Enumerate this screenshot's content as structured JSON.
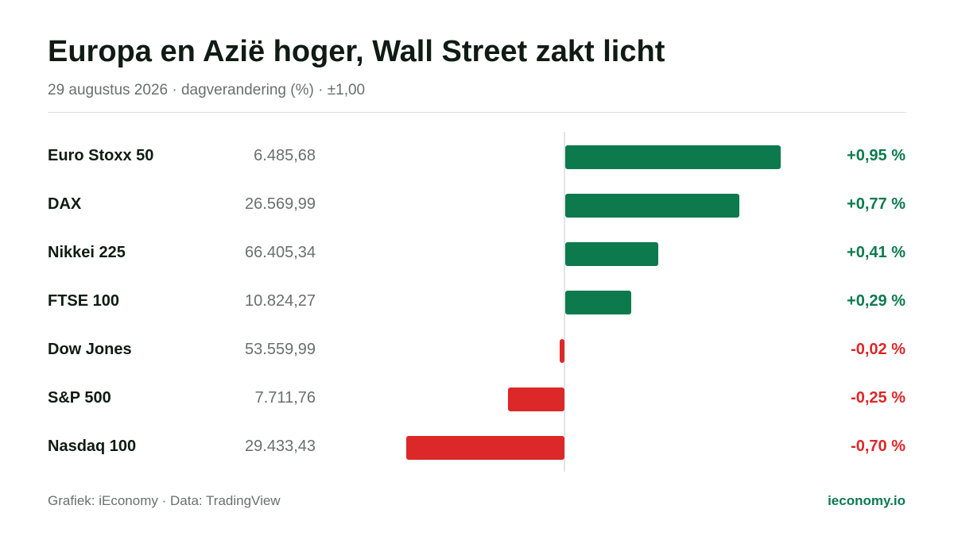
{
  "header": {
    "title": "Europa en Azië hoger, Wall Street zakt licht",
    "subtitle": "29 augustus 2026 · dagverandering (%) · ±1,00"
  },
  "colors": {
    "positive": "#0d7a4e",
    "negative": "#dc2828",
    "title": "#0f1b14",
    "muted": "#6b6f6d"
  },
  "chart_data": {
    "type": "bar",
    "orientation": "horizontal",
    "unit": "%",
    "xlim": [
      -1.0,
      1.0
    ],
    "grid": false,
    "categories": [
      "Euro Stoxx 50",
      "DAX",
      "Nikkei 225",
      "FTSE 100",
      "Dow Jones",
      "S&P 500",
      "Nasdaq 100"
    ],
    "index_levels": [
      "6.485,68",
      "26.569,99",
      "66.405,34",
      "10.824,27",
      "53.559,99",
      "7.711,76",
      "29.433,43"
    ],
    "values": [
      0.95,
      0.77,
      0.41,
      0.29,
      -0.02,
      -0.25,
      -0.7
    ],
    "value_labels": [
      "+0,95 %",
      "+0,77 %",
      "+0,41 %",
      "+0,29 %",
      "-0,02 %",
      "-0,25 %",
      "-0,70 %"
    ]
  },
  "footer": {
    "credit": "Grafiek: iEconomy · Data: TradingView",
    "brand": "ieconomy.io"
  }
}
